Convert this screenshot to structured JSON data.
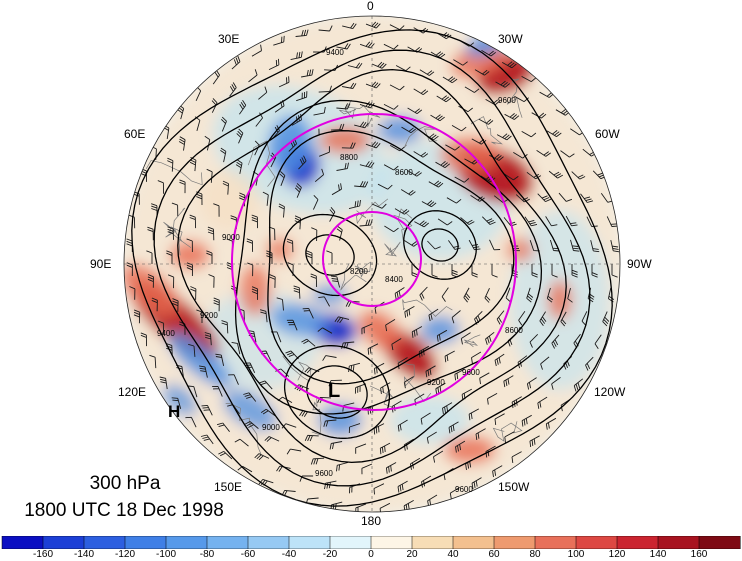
{
  "map": {
    "projection": "north polar stereographic",
    "level_label": "300 hPa",
    "time_label": "1800 UTC 18 Dec 1998",
    "longitude_labels": {
      "top": "0",
      "top_left": "30E",
      "top_right": "30W",
      "upper_left": "60E",
      "upper_right": "60W",
      "left": "90E",
      "right": "90W",
      "lower_left": "120E",
      "lower_right": "120W",
      "bottom_left": "150E",
      "bottom_right": "150W",
      "bottom": "180"
    },
    "contour_labels": [
      "9400",
      "9600",
      "8800",
      "8600",
      "8400",
      "9000",
      "9200",
      "8200"
    ],
    "pressure_centers": {
      "low": "L",
      "high": "H"
    },
    "colors": {
      "neg_strong": "#1a2fc8",
      "neg_mid": "#4f8fe0",
      "neg_weak": "#b9e4f5",
      "pos_weak": "#f5ddc0",
      "pos_mid": "#e86b50",
      "pos_strong": "#b5141c",
      "circle": "#e100e1"
    }
  },
  "colorbar": {
    "labels": [
      "-160",
      "-140",
      "-120",
      "-100",
      "-80",
      "-60",
      "-40",
      "-20",
      "0",
      "20",
      "40",
      "60",
      "80",
      "100",
      "120",
      "140",
      "160"
    ],
    "colors": [
      "#0b0fc2",
      "#1c3fd6",
      "#2d5fe0",
      "#3f7fe6",
      "#5699ea",
      "#75b2ef",
      "#96c9f3",
      "#bde3f8",
      "#e2f5fb",
      "#fdf5e6",
      "#f7ddb6",
      "#f3c08f",
      "#ee9a6f",
      "#e8705a",
      "#dd4843",
      "#cb2430",
      "#a81320",
      "#7e0a14"
    ]
  }
}
